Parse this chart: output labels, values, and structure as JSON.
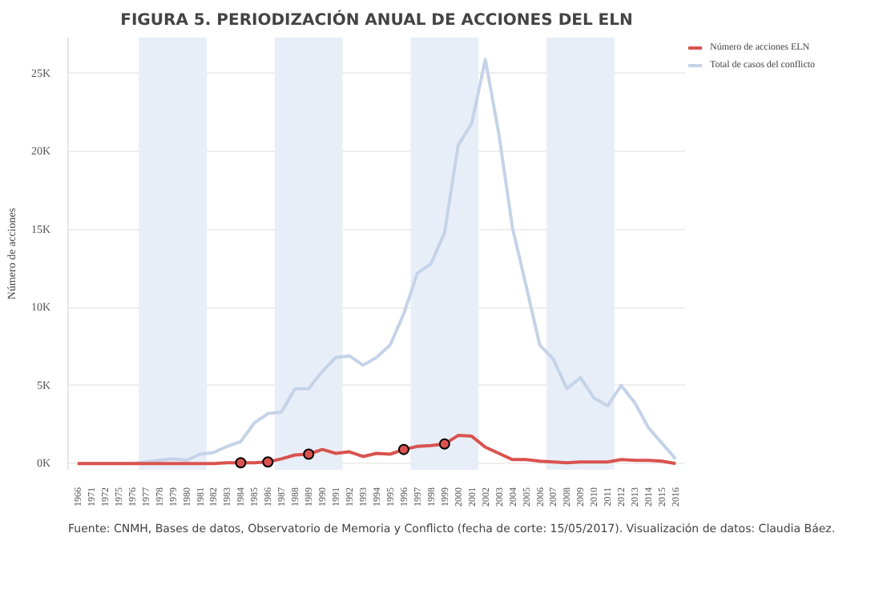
{
  "chart_data": {
    "type": "line",
    "title": "FIGURA 5. PERIODIZACIÓN ANUAL DE ACCIONES DEL ELN",
    "ylabel": "Número de acciones",
    "categories": [
      "1966",
      "1971",
      "1972",
      "1975",
      "1976",
      "1977",
      "1978",
      "1979",
      "1980",
      "1981",
      "1982",
      "1983",
      "1984",
      "1985",
      "1986",
      "1987",
      "1988",
      "1989",
      "1990",
      "1991",
      "1992",
      "1993",
      "1994",
      "1995",
      "1996",
      "1997",
      "1998",
      "1999",
      "2000",
      "2001",
      "2002",
      "2003",
      "2004",
      "2005",
      "2006",
      "2007",
      "2008",
      "2009",
      "2010",
      "2011",
      "2012",
      "2013",
      "2014",
      "2015",
      "2016"
    ],
    "series": [
      {
        "name": "Número de acciones ELN",
        "color": "#d9534f",
        "values": [
          0,
          0,
          0,
          0,
          0,
          0,
          0,
          0,
          0,
          0,
          0,
          50,
          50,
          50,
          100,
          300,
          550,
          600,
          900,
          650,
          750,
          450,
          650,
          600,
          900,
          1100,
          1150,
          1250,
          1800,
          1750,
          1050,
          650,
          250,
          250,
          150,
          100,
          50,
          100,
          100,
          100,
          250,
          200,
          200,
          150,
          0
        ]
      },
      {
        "name": "Total de casos del conflicto",
        "color": "#c5d3e8",
        "values": [
          0,
          0,
          0,
          0,
          0,
          100,
          200,
          300,
          200,
          600,
          700,
          1100,
          1400,
          2600,
          3200,
          3300,
          4800,
          4800,
          5900,
          6800,
          6900,
          6300,
          6800,
          7600,
          9600,
          12200,
          12800,
          14800,
          20400,
          21800,
          25900,
          21100,
          15100,
          11400,
          7600,
          6700,
          4800,
          5500,
          4200,
          3700,
          5000,
          3900,
          2300,
          1300,
          300
        ]
      },
      {
        "type": "scatter",
        "color": "#d9534f",
        "marker": "circle",
        "values": [
          null,
          null,
          null,
          null,
          null,
          null,
          null,
          null,
          null,
          null,
          null,
          null,
          50,
          null,
          100,
          null,
          null,
          600,
          null,
          null,
          null,
          null,
          null,
          null,
          900,
          null,
          null,
          1250,
          null,
          null,
          null,
          null,
          null,
          null,
          null,
          null,
          null,
          null,
          null,
          null,
          null,
          null,
          null,
          null,
          null
        ]
      }
    ],
    "ylim": [
      -400,
      27300
    ],
    "yticks": [
      {
        "value": 0,
        "label": "0K"
      },
      {
        "value": 5000,
        "label": "5K"
      },
      {
        "value": 10000,
        "label": "10K"
      },
      {
        "value": 15000,
        "label": "15K"
      },
      {
        "value": 20000,
        "label": "20K"
      },
      {
        "value": 25000,
        "label": "25K"
      }
    ],
    "bands": [
      {
        "axis": "x",
        "from": "1977",
        "to": "1981",
        "color": "#e8eef8"
      },
      {
        "axis": "x",
        "from": "1987",
        "to": "1991",
        "color": "#e8eef8"
      },
      {
        "axis": "x",
        "from": "1997",
        "to": "2001",
        "color": "#e8eef8"
      },
      {
        "axis": "x",
        "from": "2007",
        "to": "2011",
        "color": "#e8eef8"
      }
    ],
    "grid": "y",
    "legend": "top right",
    "line_style": "solid",
    "annotations": [
      "Fuente: CNMH, Bases de datos, Observatorio de Memoria y Conflicto (fecha de corte: 15/05/2017). Visualización de datos: Claudia Báez."
    ]
  }
}
